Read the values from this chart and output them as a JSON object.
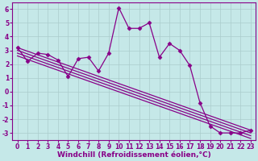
{
  "xlabel": "Windchill (Refroidissement éolien,°C)",
  "background_color": "#c5e8e8",
  "grid_color": "#aacccc",
  "line_color": "#880088",
  "ylim": [
    -3.5,
    6.5
  ],
  "xlim": [
    -0.5,
    23.5
  ],
  "ytick_vals": [
    -3,
    -2,
    -1,
    0,
    1,
    2,
    3,
    4,
    5,
    6
  ],
  "xtick_vals": [
    0,
    1,
    2,
    3,
    4,
    5,
    6,
    7,
    8,
    9,
    10,
    11,
    12,
    13,
    14,
    15,
    16,
    17,
    18,
    19,
    20,
    21,
    22,
    23
  ],
  "main_series_x": [
    0,
    1,
    2,
    3,
    4,
    5,
    6,
    7,
    8,
    9,
    10,
    11,
    12,
    13,
    14,
    15,
    16,
    17,
    18,
    19,
    20,
    21,
    22,
    23
  ],
  "main_series_y": [
    3.2,
    2.2,
    2.8,
    2.7,
    2.3,
    1.1,
    2.4,
    2.5,
    1.5,
    2.8,
    6.1,
    4.6,
    4.6,
    5.0,
    2.5,
    3.5,
    3.0,
    1.9,
    -0.8,
    -2.5,
    -3.0,
    -3.0,
    -3.0,
    -2.8
  ],
  "trend_lines": [
    {
      "x0": 0,
      "y0": 3.2,
      "x1": 23,
      "y1": -2.8
    },
    {
      "x0": 0,
      "y0": 3.0,
      "x1": 23,
      "y1": -3.0
    },
    {
      "x0": 0,
      "y0": 2.8,
      "x1": 23,
      "y1": -3.2
    },
    {
      "x0": 0,
      "y0": 2.6,
      "x1": 23,
      "y1": -3.4
    }
  ],
  "marker": "D",
  "markersize": 2.5,
  "linewidth": 0.9,
  "tick_fontsize": 5.5,
  "label_fontsize": 6.5
}
